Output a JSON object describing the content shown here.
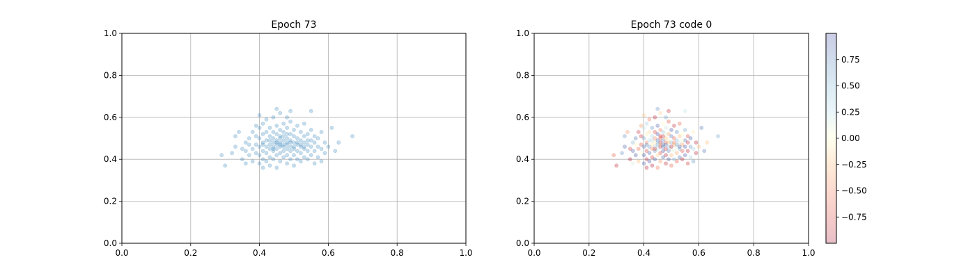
{
  "chart_data": [
    {
      "type": "scatter",
      "title": "Epoch 73",
      "xlabel": "",
      "ylabel": "",
      "xlim": [
        0.0,
        1.0
      ],
      "ylim": [
        0.0,
        1.0
      ],
      "xticks": [
        "0.0",
        "0.2",
        "0.4",
        "0.6",
        "0.8",
        "1.0"
      ],
      "yticks": [
        "0.0",
        "0.2",
        "0.4",
        "0.6",
        "0.8",
        "1.0"
      ],
      "grid": true,
      "point_color": "#1f77b4",
      "point_alpha": 0.25,
      "points": [
        [
          0.29,
          0.42
        ],
        [
          0.3,
          0.37
        ],
        [
          0.32,
          0.43
        ],
        [
          0.33,
          0.46
        ],
        [
          0.33,
          0.51
        ],
        [
          0.34,
          0.53
        ],
        [
          0.35,
          0.4
        ],
        [
          0.35,
          0.45
        ],
        [
          0.36,
          0.38
        ],
        [
          0.36,
          0.48
        ],
        [
          0.37,
          0.42
        ],
        [
          0.37,
          0.5
        ],
        [
          0.38,
          0.39
        ],
        [
          0.38,
          0.45
        ],
        [
          0.38,
          0.53
        ],
        [
          0.39,
          0.47
        ],
        [
          0.39,
          0.56
        ],
        [
          0.39,
          0.43
        ],
        [
          0.4,
          0.38
        ],
        [
          0.4,
          0.42
        ],
        [
          0.4,
          0.46
        ],
        [
          0.4,
          0.5
        ],
        [
          0.4,
          0.55
        ],
        [
          0.4,
          0.61
        ],
        [
          0.41,
          0.36
        ],
        [
          0.41,
          0.4
        ],
        [
          0.41,
          0.44
        ],
        [
          0.41,
          0.48
        ],
        [
          0.41,
          0.52
        ],
        [
          0.41,
          0.57
        ],
        [
          0.42,
          0.39
        ],
        [
          0.42,
          0.43
        ],
        [
          0.42,
          0.46
        ],
        [
          0.42,
          0.49
        ],
        [
          0.42,
          0.53
        ],
        [
          0.42,
          0.59
        ],
        [
          0.43,
          0.37
        ],
        [
          0.43,
          0.41
        ],
        [
          0.43,
          0.45
        ],
        [
          0.43,
          0.47
        ],
        [
          0.43,
          0.51
        ],
        [
          0.43,
          0.55
        ],
        [
          0.44,
          0.4
        ],
        [
          0.44,
          0.44
        ],
        [
          0.44,
          0.46
        ],
        [
          0.44,
          0.48
        ],
        [
          0.44,
          0.5
        ],
        [
          0.44,
          0.53
        ],
        [
          0.44,
          0.6
        ],
        [
          0.45,
          0.36
        ],
        [
          0.45,
          0.42
        ],
        [
          0.45,
          0.45
        ],
        [
          0.45,
          0.47
        ],
        [
          0.45,
          0.49
        ],
        [
          0.45,
          0.52
        ],
        [
          0.45,
          0.56
        ],
        [
          0.45,
          0.64
        ],
        [
          0.46,
          0.39
        ],
        [
          0.46,
          0.43
        ],
        [
          0.46,
          0.46
        ],
        [
          0.46,
          0.48
        ],
        [
          0.46,
          0.51
        ],
        [
          0.46,
          0.54
        ],
        [
          0.46,
          0.62
        ],
        [
          0.47,
          0.41
        ],
        [
          0.47,
          0.44
        ],
        [
          0.47,
          0.47
        ],
        [
          0.47,
          0.49
        ],
        [
          0.47,
          0.53
        ],
        [
          0.47,
          0.57
        ],
        [
          0.48,
          0.38
        ],
        [
          0.48,
          0.42
        ],
        [
          0.48,
          0.45
        ],
        [
          0.48,
          0.48
        ],
        [
          0.48,
          0.5
        ],
        [
          0.48,
          0.55
        ],
        [
          0.48,
          0.6
        ],
        [
          0.49,
          0.4
        ],
        [
          0.49,
          0.44
        ],
        [
          0.49,
          0.46
        ],
        [
          0.49,
          0.49
        ],
        [
          0.49,
          0.52
        ],
        [
          0.49,
          0.58
        ],
        [
          0.49,
          0.63
        ],
        [
          0.5,
          0.37
        ],
        [
          0.5,
          0.42
        ],
        [
          0.5,
          0.45
        ],
        [
          0.5,
          0.48
        ],
        [
          0.5,
          0.51
        ],
        [
          0.5,
          0.54
        ],
        [
          0.51,
          0.4
        ],
        [
          0.51,
          0.44
        ],
        [
          0.51,
          0.47
        ],
        [
          0.51,
          0.5
        ],
        [
          0.51,
          0.56
        ],
        [
          0.52,
          0.39
        ],
        [
          0.52,
          0.43
        ],
        [
          0.52,
          0.46
        ],
        [
          0.52,
          0.49
        ],
        [
          0.52,
          0.53
        ],
        [
          0.53,
          0.41
        ],
        [
          0.53,
          0.45
        ],
        [
          0.53,
          0.48
        ],
        [
          0.53,
          0.51
        ],
        [
          0.53,
          0.57
        ],
        [
          0.54,
          0.4
        ],
        [
          0.54,
          0.44
        ],
        [
          0.54,
          0.47
        ],
        [
          0.54,
          0.52
        ],
        [
          0.55,
          0.42
        ],
        [
          0.55,
          0.46
        ],
        [
          0.55,
          0.49
        ],
        [
          0.55,
          0.54
        ],
        [
          0.55,
          0.63
        ],
        [
          0.56,
          0.38
        ],
        [
          0.56,
          0.44
        ],
        [
          0.56,
          0.48
        ],
        [
          0.56,
          0.51
        ],
        [
          0.57,
          0.41
        ],
        [
          0.57,
          0.46
        ],
        [
          0.57,
          0.5
        ],
        [
          0.58,
          0.39
        ],
        [
          0.58,
          0.45
        ],
        [
          0.58,
          0.53
        ],
        [
          0.59,
          0.43
        ],
        [
          0.59,
          0.48
        ],
        [
          0.6,
          0.46
        ],
        [
          0.61,
          0.55
        ],
        [
          0.62,
          0.44
        ],
        [
          0.63,
          0.48
        ],
        [
          0.67,
          0.51
        ],
        [
          0.36,
          0.44
        ],
        [
          0.37,
          0.47
        ],
        [
          0.39,
          0.51
        ],
        [
          0.41,
          0.47
        ],
        [
          0.43,
          0.49
        ],
        [
          0.44,
          0.45
        ],
        [
          0.46,
          0.47
        ],
        [
          0.47,
          0.46
        ],
        [
          0.48,
          0.47
        ],
        [
          0.49,
          0.48
        ],
        [
          0.5,
          0.46
        ],
        [
          0.51,
          0.48
        ],
        [
          0.52,
          0.47
        ],
        [
          0.53,
          0.46
        ],
        [
          0.54,
          0.49
        ],
        [
          0.45,
          0.48
        ],
        [
          0.46,
          0.5
        ],
        [
          0.47,
          0.51
        ],
        [
          0.48,
          0.52
        ]
      ]
    },
    {
      "type": "scatter",
      "title": "Epoch 73 code 0",
      "xlabel": "",
      "ylabel": "",
      "xlim": [
        0.0,
        1.0
      ],
      "ylim": [
        0.0,
        1.0
      ],
      "xticks": [
        "0.0",
        "0.2",
        "0.4",
        "0.6",
        "0.8",
        "1.0"
      ],
      "yticks": [
        "0.0",
        "0.2",
        "0.4",
        "0.6",
        "0.8",
        "1.0"
      ],
      "grid": true,
      "colormap": "RdYlBu",
      "point_alpha": 0.25,
      "colorbar": {
        "range": [
          -1.0,
          1.0
        ],
        "ticks": [
          0.75,
          0.5,
          0.25,
          0.0,
          -0.25,
          -0.5,
          -0.75
        ],
        "tick_labels": [
          "0.75",
          "0.50",
          "0.25",
          "0.00",
          "−0.25",
          "−0.50",
          "−0.75"
        ],
        "top_color": "#313695",
        "mid_color": "#ffffbf",
        "bottom_color": "#a50026"
      }
    }
  ]
}
